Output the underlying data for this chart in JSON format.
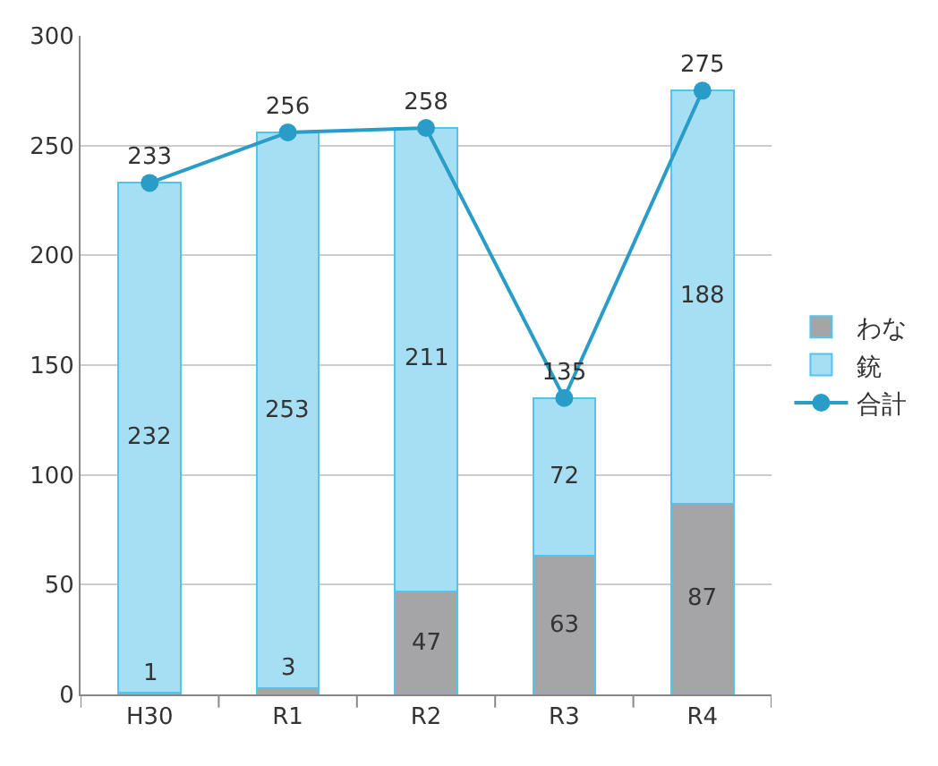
{
  "chart_data": {
    "type": "bar",
    "stacked": true,
    "categories": [
      "H30",
      "R1",
      "R2",
      "R3",
      "R4"
    ],
    "series": [
      {
        "name": "わな",
        "color": "#a5a5a8",
        "values": [
          1,
          3,
          47,
          63,
          87
        ]
      },
      {
        "name": "銃",
        "color": "#a6def3",
        "values": [
          232,
          253,
          211,
          72,
          188
        ]
      },
      {
        "name": "合計",
        "type": "line",
        "color": "#2a9cc8",
        "values": [
          233,
          256,
          258,
          135,
          275
        ],
        "marker": "circle"
      }
    ],
    "ylim": [
      0,
      300
    ],
    "yticks": [
      0,
      50,
      100,
      150,
      200,
      250,
      300
    ],
    "grid": "y",
    "legend": "right",
    "data_labels": true
  }
}
